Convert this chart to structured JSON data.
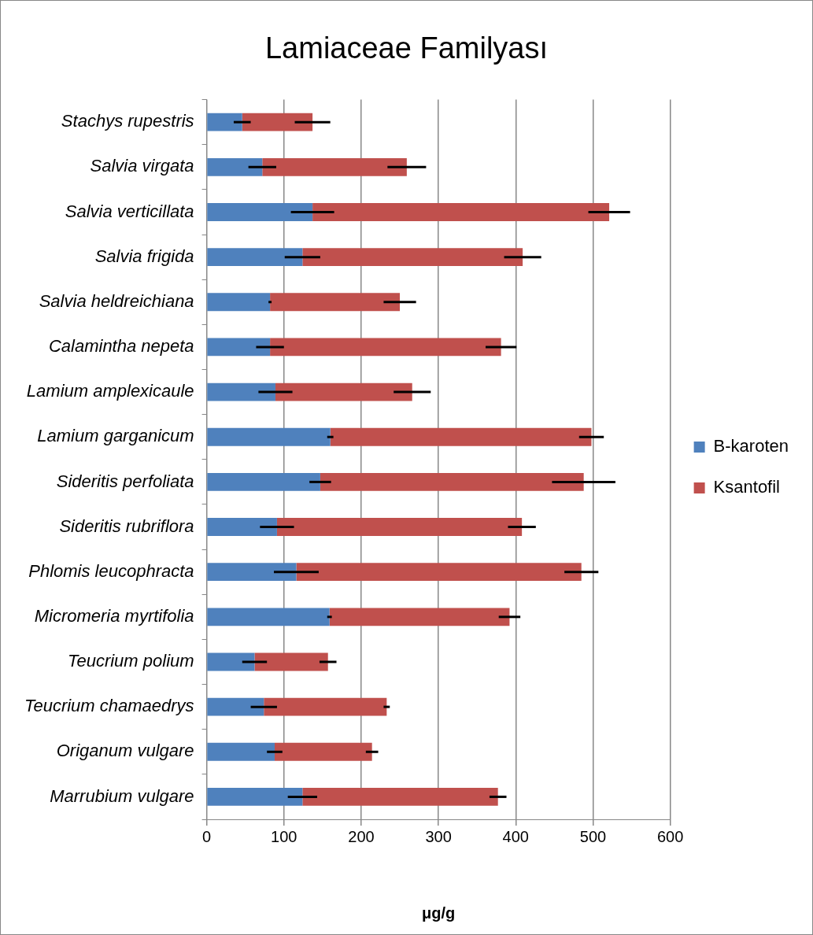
{
  "chart_data": {
    "type": "bar",
    "orientation": "horizontal",
    "stacked": true,
    "title": "Lamiaceae Familyası",
    "xlabel": "μg/g",
    "categories": [
      "Stachys rupestris",
      "Salvia virgata",
      "Salvia verticillata",
      "Salvia frigida",
      "Salvia heldreichiana",
      "Calamintha nepeta",
      "Lamium amplexicaule",
      "Lamium garganicum",
      "Sideritis perfoliata",
      "Sideritis rubriflora",
      "Phlomis leucophracta",
      "Micromeria myrtifolia",
      "Teucrium polium",
      "Teucrium chamaedrys",
      "Origanum vulgare",
      "Marrubium vulgare"
    ],
    "series": [
      {
        "name": "B-karoten",
        "color": "#4f81bd",
        "values": [
          46,
          72,
          137,
          124,
          82,
          82,
          89,
          160,
          147,
          91,
          116,
          159,
          62,
          74,
          88,
          124
        ],
        "errors": [
          11,
          18,
          28,
          23,
          2,
          18,
          22,
          4,
          14,
          22,
          29,
          3,
          16,
          17,
          10,
          19
        ]
      },
      {
        "name": "Ksantofil",
        "color": "#c0504d",
        "values": [
          91,
          187,
          384,
          285,
          168,
          299,
          177,
          338,
          341,
          317,
          369,
          233,
          95,
          159,
          126,
          253
        ],
        "errors": [
          23,
          25,
          27,
          24,
          21,
          20,
          24,
          16,
          41,
          18,
          22,
          14,
          11,
          4,
          8,
          11
        ]
      }
    ],
    "xlim": [
      0,
      600
    ],
    "xticks": [
      0,
      100,
      200,
      300,
      400,
      500,
      600
    ],
    "grid": "x",
    "legend": "right"
  }
}
